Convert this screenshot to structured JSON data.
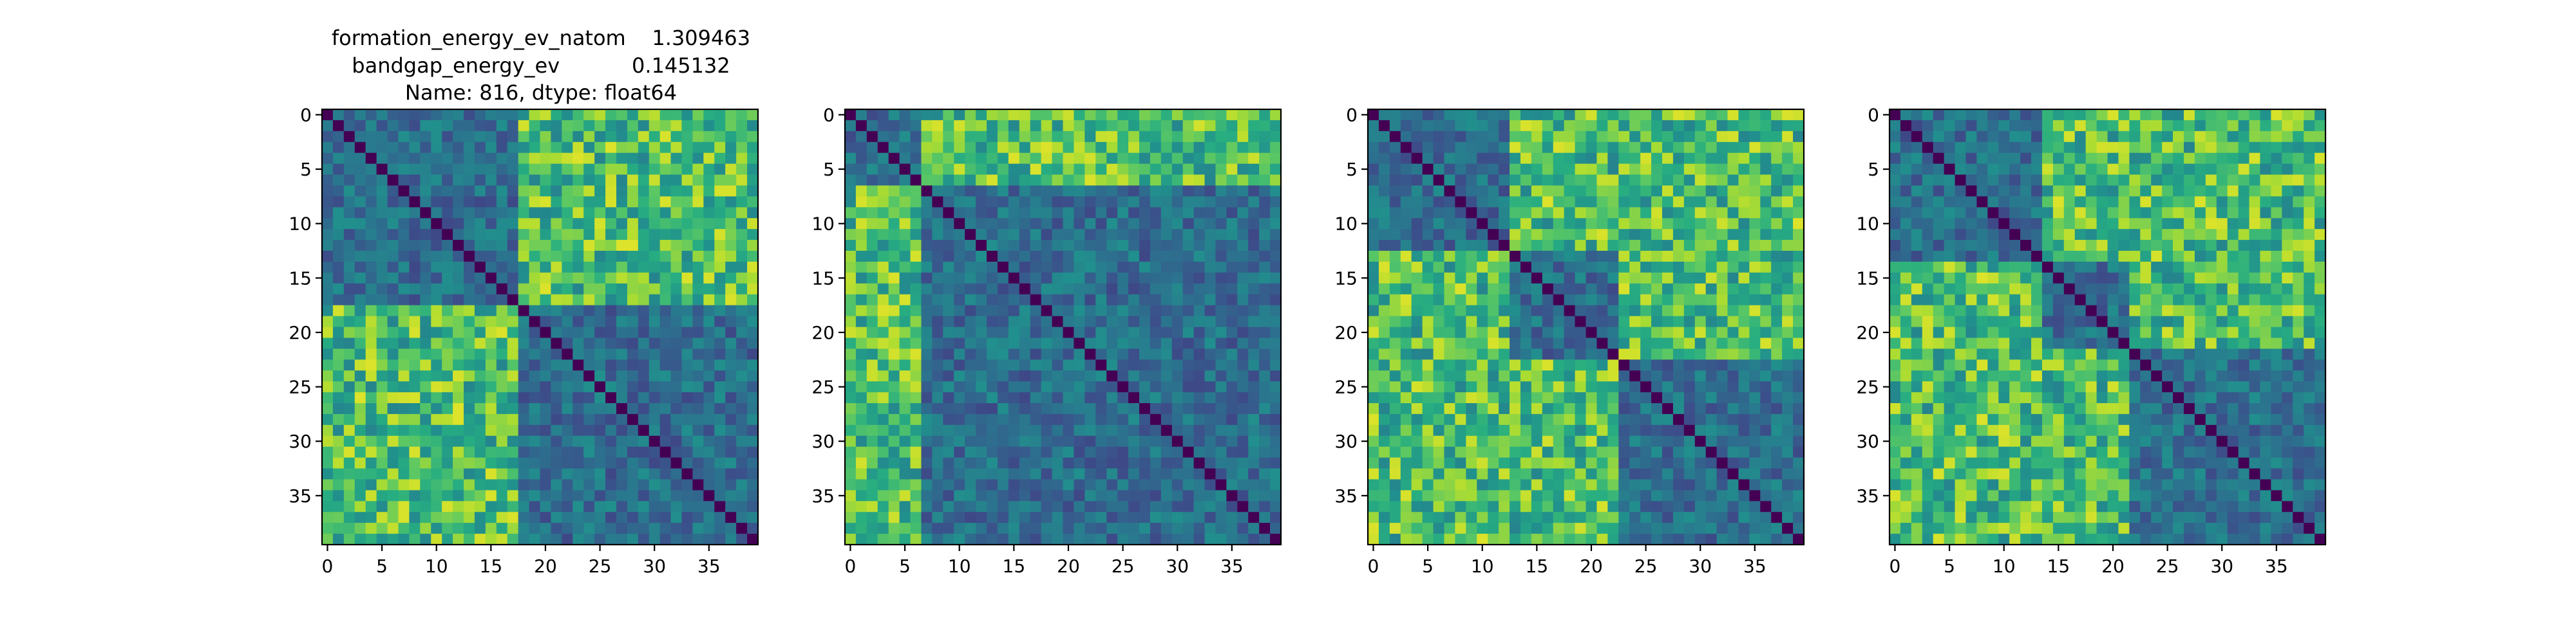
{
  "figure": {
    "title_lines": [
      "formation_energy_ev_natom    1.309463",
      "bandgap_energy_ev           0.145132",
      "Name: 816, dtype: float64"
    ]
  },
  "chart_data": [
    {
      "type": "heatmap",
      "title": "formation_energy_ev_natom    1.309463\nbandgap_energy_ev           0.145132\nName: 816, dtype: float64",
      "size": 40,
      "colormap": "viridis",
      "xticks": [
        0,
        5,
        10,
        15,
        20,
        25,
        30,
        35
      ],
      "yticks": [
        0,
        5,
        10,
        15,
        20,
        25,
        30,
        35
      ],
      "xlabel": "",
      "ylabel": "",
      "pattern": "diagonal of zeros; high-value off-diagonal blocks between indices 0-17 and 17-39",
      "blocks": [
        [
          0,
          17
        ],
        [
          18,
          39
        ]
      ]
    },
    {
      "type": "heatmap",
      "title": "",
      "size": 40,
      "colormap": "viridis",
      "xticks": [
        0,
        5,
        10,
        15,
        20,
        25,
        30,
        35
      ],
      "yticks": [
        0,
        5,
        10,
        15,
        20,
        25,
        30,
        35
      ],
      "xlabel": "",
      "ylabel": "",
      "pattern": "diagonal of zeros; bright rows/columns near 0-6 and bright blocks around 8-15 x 25-33",
      "blocks": [
        [
          0,
          6
        ],
        [
          7,
          39
        ]
      ]
    },
    {
      "type": "heatmap",
      "title": "",
      "size": 40,
      "colormap": "viridis",
      "xticks": [
        0,
        5,
        10,
        15,
        20,
        25,
        30,
        35
      ],
      "yticks": [
        0,
        5,
        10,
        15,
        20,
        25,
        30,
        35
      ],
      "xlabel": "",
      "ylabel": "",
      "pattern": "diagonal of zeros; bright off-diagonal blocks between indices 0-12 and 13-22",
      "blocks": [
        [
          0,
          12
        ],
        [
          13,
          22
        ],
        [
          23,
          39
        ]
      ]
    },
    {
      "type": "heatmap",
      "title": "",
      "size": 40,
      "colormap": "viridis",
      "xticks": [
        0,
        5,
        10,
        15,
        20,
        25,
        30,
        35
      ],
      "yticks": [
        0,
        5,
        10,
        15,
        20,
        25,
        30,
        35
      ],
      "xlabel": "",
      "ylabel": "",
      "pattern": "diagonal of zeros; bright off-diagonal blocks between indices 0-13 and 14-21",
      "blocks": [
        [
          0,
          13
        ],
        [
          14,
          21
        ],
        [
          22,
          39
        ]
      ]
    }
  ]
}
